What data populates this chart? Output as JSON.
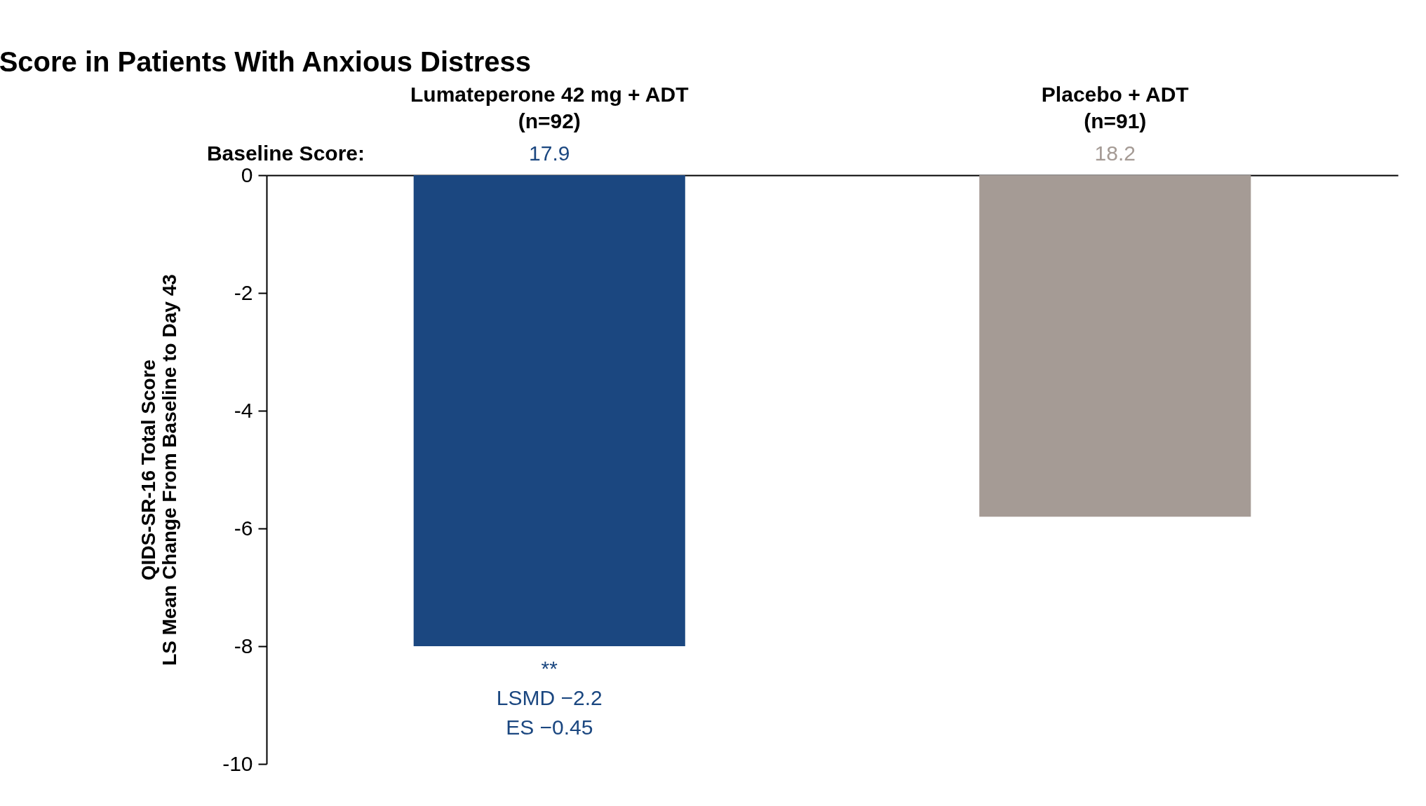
{
  "chart_data": {
    "type": "bar",
    "title": "Score in Patients With Anxious Distress",
    "ylabel": "QIDS-SR-16 Total Score\nLS Mean Change From Baseline to Day 43",
    "categories": [
      "Lumateperone 42 mg + ADT\n(n=92)",
      "Placebo + ADT\n(n=91)"
    ],
    "values": [
      -8.0,
      -5.8
    ],
    "colors": [
      "#1b4780",
      "#a59b95"
    ],
    "ylim": [
      -10,
      0
    ],
    "yticks": [
      0,
      -2,
      -4,
      -6,
      -8,
      -10
    ],
    "annotations": [
      "Baseline Score:",
      "17.9",
      "18.2",
      {
        "text": "**",
        "x": "Lumateperone 42 mg + ADT\n(n=92)",
        "y": -8.0
      },
      {
        "text": "LSMD −2.2",
        "x": "Lumateperone 42 mg + ADT\n(n=92)",
        "y": -8.0
      },
      "ES −0.45"
    ]
  }
}
